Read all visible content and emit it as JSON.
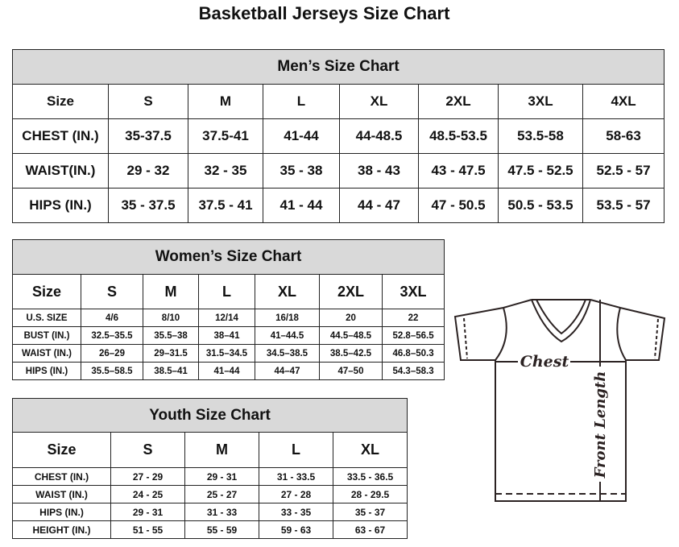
{
  "title": "Basketball Jerseys Size Chart",
  "men": {
    "caption": "Men’s Size Chart",
    "rows": [
      [
        "Size",
        "S",
        "M",
        "L",
        "XL",
        "2XL",
        "3XL",
        "4XL"
      ],
      [
        "CHEST (IN.)",
        "35-37.5",
        "37.5-41",
        "41-44",
        "44-48.5",
        "48.5-53.5",
        "53.5-58",
        "58-63"
      ],
      [
        "WAIST(IN.)",
        "29 - 32",
        "32 - 35",
        "35 - 38",
        "38 - 43",
        "43 - 47.5",
        "47.5 - 52.5",
        "52.5 - 57"
      ],
      [
        "HIPS (IN.)",
        "35 - 37.5",
        "37.5 - 41",
        "41 - 44",
        "44 - 47",
        "47 - 50.5",
        "50.5 - 53.5",
        "53.5 - 57"
      ]
    ]
  },
  "women": {
    "caption": "Women’s Size Chart",
    "rows": [
      [
        "Size",
        "S",
        "M",
        "L",
        "XL",
        "2XL",
        "3XL"
      ],
      [
        "U.S. SIZE",
        "4/6",
        "8/10",
        "12/14",
        "16/18",
        "20",
        "22"
      ],
      [
        "BUST (IN.)",
        "32.5–35.5",
        "35.5–38",
        "38–41",
        "41–44.5",
        "44.5–48.5",
        "52.8–56.5"
      ],
      [
        "WAIST (IN.)",
        "26–29",
        "29–31.5",
        "31.5–34.5",
        "34.5–38.5",
        "38.5–42.5",
        "46.8–50.3"
      ],
      [
        "HIPS (IN.)",
        "35.5–58.5",
        "38.5–41",
        "41–44",
        "44–47",
        "47–50",
        "54.3–58.3"
      ]
    ]
  },
  "youth": {
    "caption": "Youth Size Chart",
    "rows": [
      [
        "Size",
        "S",
        "M",
        "L",
        "XL"
      ],
      [
        "CHEST (IN.)",
        "27 - 29",
        "29 - 31",
        "31 - 33.5",
        "33.5 - 36.5"
      ],
      [
        "WAIST (IN.)",
        "24 - 25",
        "25 - 27",
        "27 - 28",
        "28 - 29.5"
      ],
      [
        "HIPS (IN.)",
        "29 - 31",
        "31 - 33",
        "33 - 35",
        "35 - 37"
      ],
      [
        "HEIGHT (IN.)",
        "51 - 55",
        "55 - 59",
        "59 - 63",
        "63 - 67"
      ]
    ]
  },
  "diagram": {
    "chest_label": "Chest",
    "length_label": "Front Length"
  }
}
